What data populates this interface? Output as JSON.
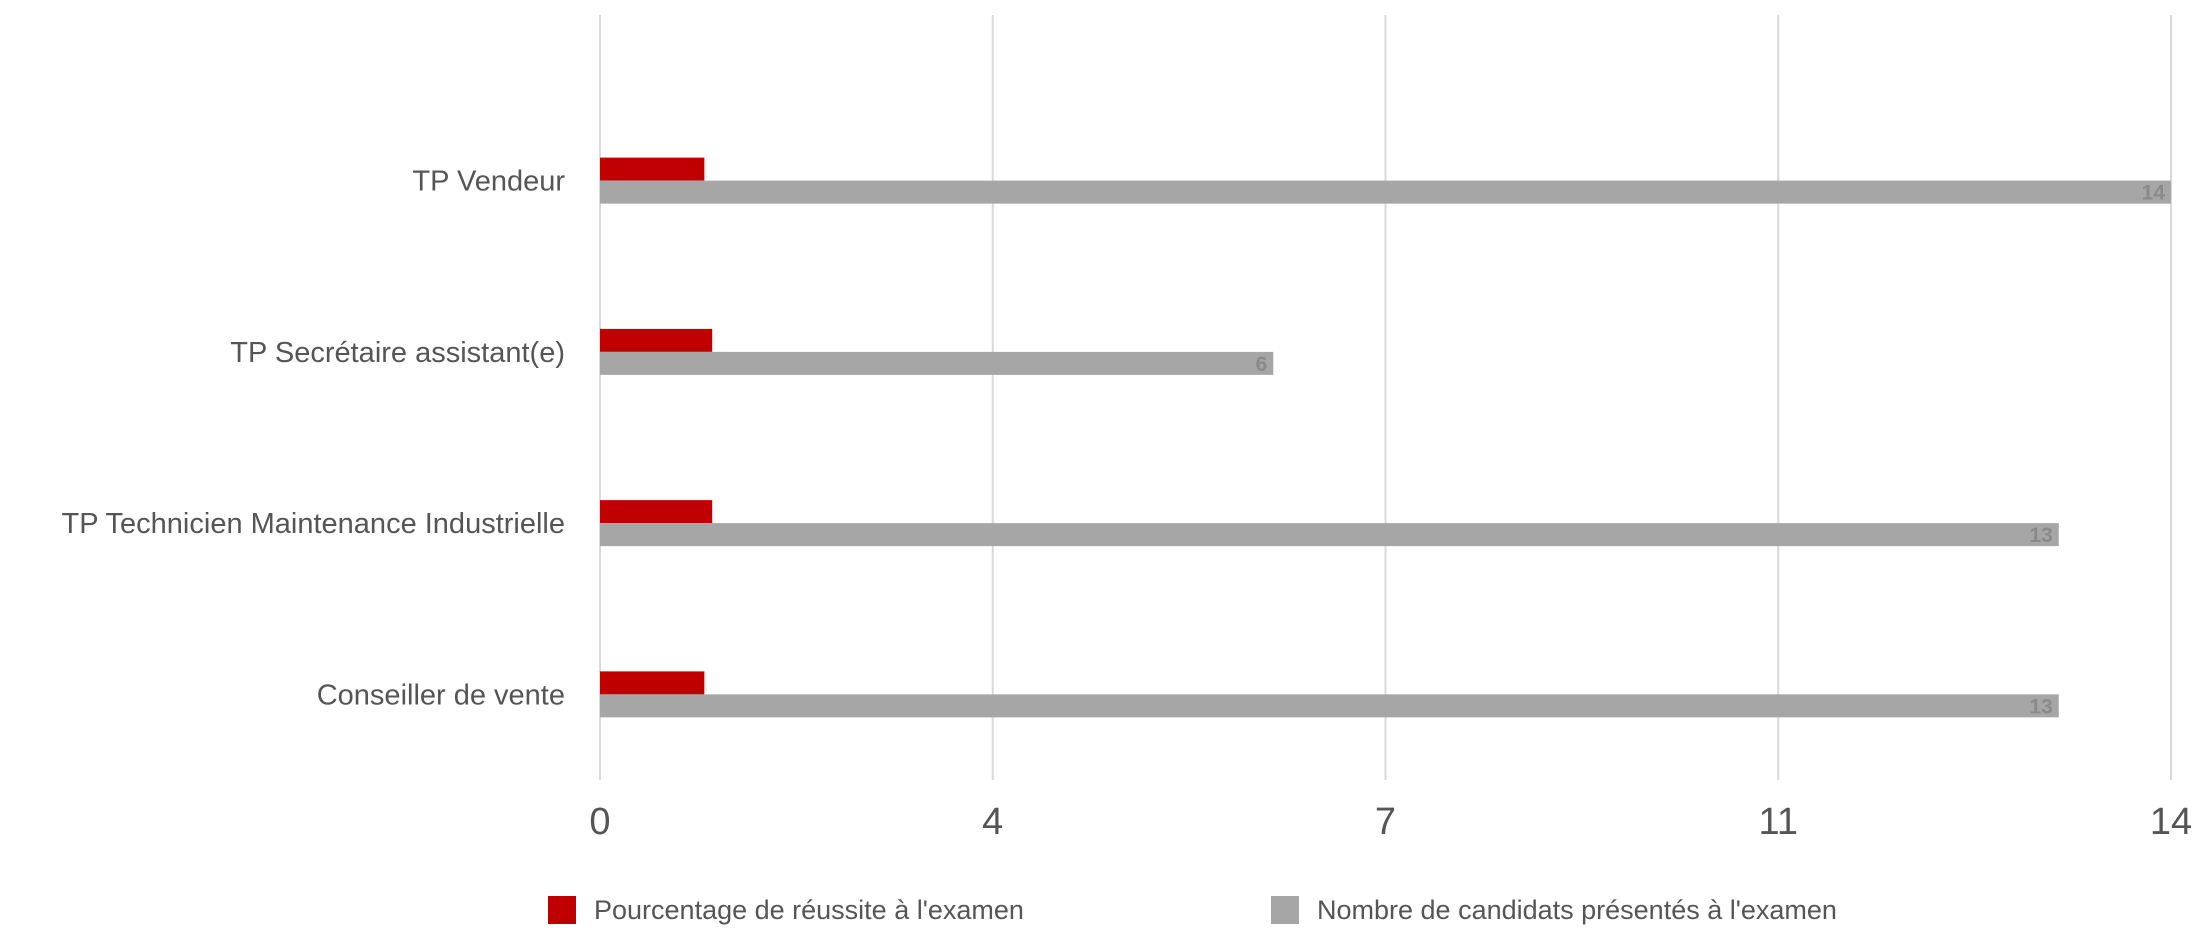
{
  "chart_data": {
    "type": "bar",
    "orientation": "horizontal",
    "categories": [
      "TP Vendeur",
      "TP Secrétaire assistant(e)",
      "TP Technicien Maintenance Industrielle",
      "Conseiller de vente"
    ],
    "series": [
      {
        "name": "Pourcentage de réussite à l'examen",
        "color": "#c00000",
        "values": [
          0.93,
          1.0,
          1.0,
          0.93
        ],
        "data_labels": [
          "",
          "",
          "",
          ""
        ]
      },
      {
        "name": "Nombre de candidats présentés à l'examen",
        "color": "#a6a6a6",
        "values": [
          14,
          6,
          13,
          13
        ],
        "data_labels": [
          "14",
          "6",
          "13",
          "13"
        ]
      }
    ],
    "x_ticks": [
      {
        "value": 0,
        "label": "0"
      },
      {
        "value": 3.5,
        "label": "4"
      },
      {
        "value": 7,
        "label": "7"
      },
      {
        "value": 10.5,
        "label": "11"
      },
      {
        "value": 14,
        "label": "14"
      }
    ],
    "xlim": [
      0,
      14
    ],
    "grid": true,
    "legend_position": "bottom",
    "title": "",
    "xlabel": "",
    "ylabel": ""
  }
}
